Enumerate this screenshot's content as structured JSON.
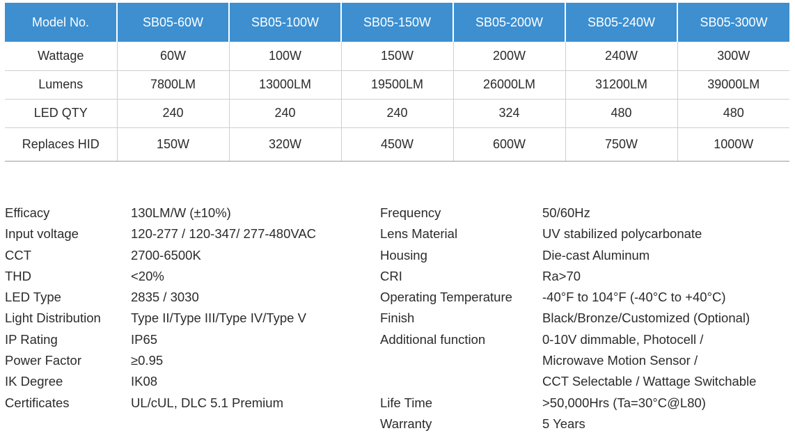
{
  "table": {
    "header_label": "Model No.",
    "models": [
      "SB05-60W",
      "SB05-100W",
      "SB05-150W",
      "SB05-200W",
      "SB05-240W",
      "SB05-300W"
    ],
    "rows": [
      {
        "label": "Wattage",
        "values": [
          "60W",
          "100W",
          "150W",
          "200W",
          "240W",
          "300W"
        ]
      },
      {
        "label": "Lumens",
        "values": [
          "7800LM",
          "13000LM",
          "19500LM",
          "26000LM",
          "31200LM",
          "39000LM"
        ]
      },
      {
        "label": "LED QTY",
        "values": [
          "240",
          "240",
          "240",
          "324",
          "480",
          "480"
        ]
      },
      {
        "label": "Replaces HID",
        "values": [
          "150W",
          "320W",
          "450W",
          "600W",
          "750W",
          "1000W"
        ]
      }
    ]
  },
  "specs_left": [
    {
      "label": "Efficacy",
      "value": "130LM/W (±10%)"
    },
    {
      "label": "Input voltage",
      "value": "120-277 / 120-347/ 277-480VAC"
    },
    {
      "label": "CCT",
      "value": "2700-6500K"
    },
    {
      "label": "THD",
      "value": "<20%"
    },
    {
      "label": "LED Type",
      "value": "2835 / 3030"
    },
    {
      "label": "Light Distribution",
      "value": "Type II/Type III/Type IV/Type V"
    },
    {
      "label": "IP Rating",
      "value": "IP65"
    },
    {
      "label": "Power Factor",
      "value": "≥0.95"
    },
    {
      "label": "IK Degree",
      "value": "IK08"
    },
    {
      "label": "Certificates",
      "value": "UL/cUL, DLC 5.1 Premium"
    }
  ],
  "specs_right": [
    {
      "label": "Frequency",
      "value": "50/60Hz"
    },
    {
      "label": "Lens Material",
      "value": "UV stabilized polycarbonate"
    },
    {
      "label": "Housing",
      "value": "Die-cast Aluminum"
    },
    {
      "label": "CRI",
      "value": "Ra>70"
    },
    {
      "label": "Operating Temperature",
      "value": "-40°F to 104°F (-40°C to +40°C)"
    },
    {
      "label": "Finish",
      "value": "Black/Bronze/Customized (Optional)"
    },
    {
      "label": "Additional function",
      "value": "0-10V dimmable, Photocell /"
    },
    {
      "label": "",
      "value": "Microwave Motion Sensor /"
    },
    {
      "label": "",
      "value": "CCT Selectable / Wattage Switchable"
    },
    {
      "label": "Life Time",
      "value": ">50,000Hrs (Ta=30°C@L80)"
    },
    {
      "label": "Warranty",
      "value": "5 Years"
    }
  ]
}
